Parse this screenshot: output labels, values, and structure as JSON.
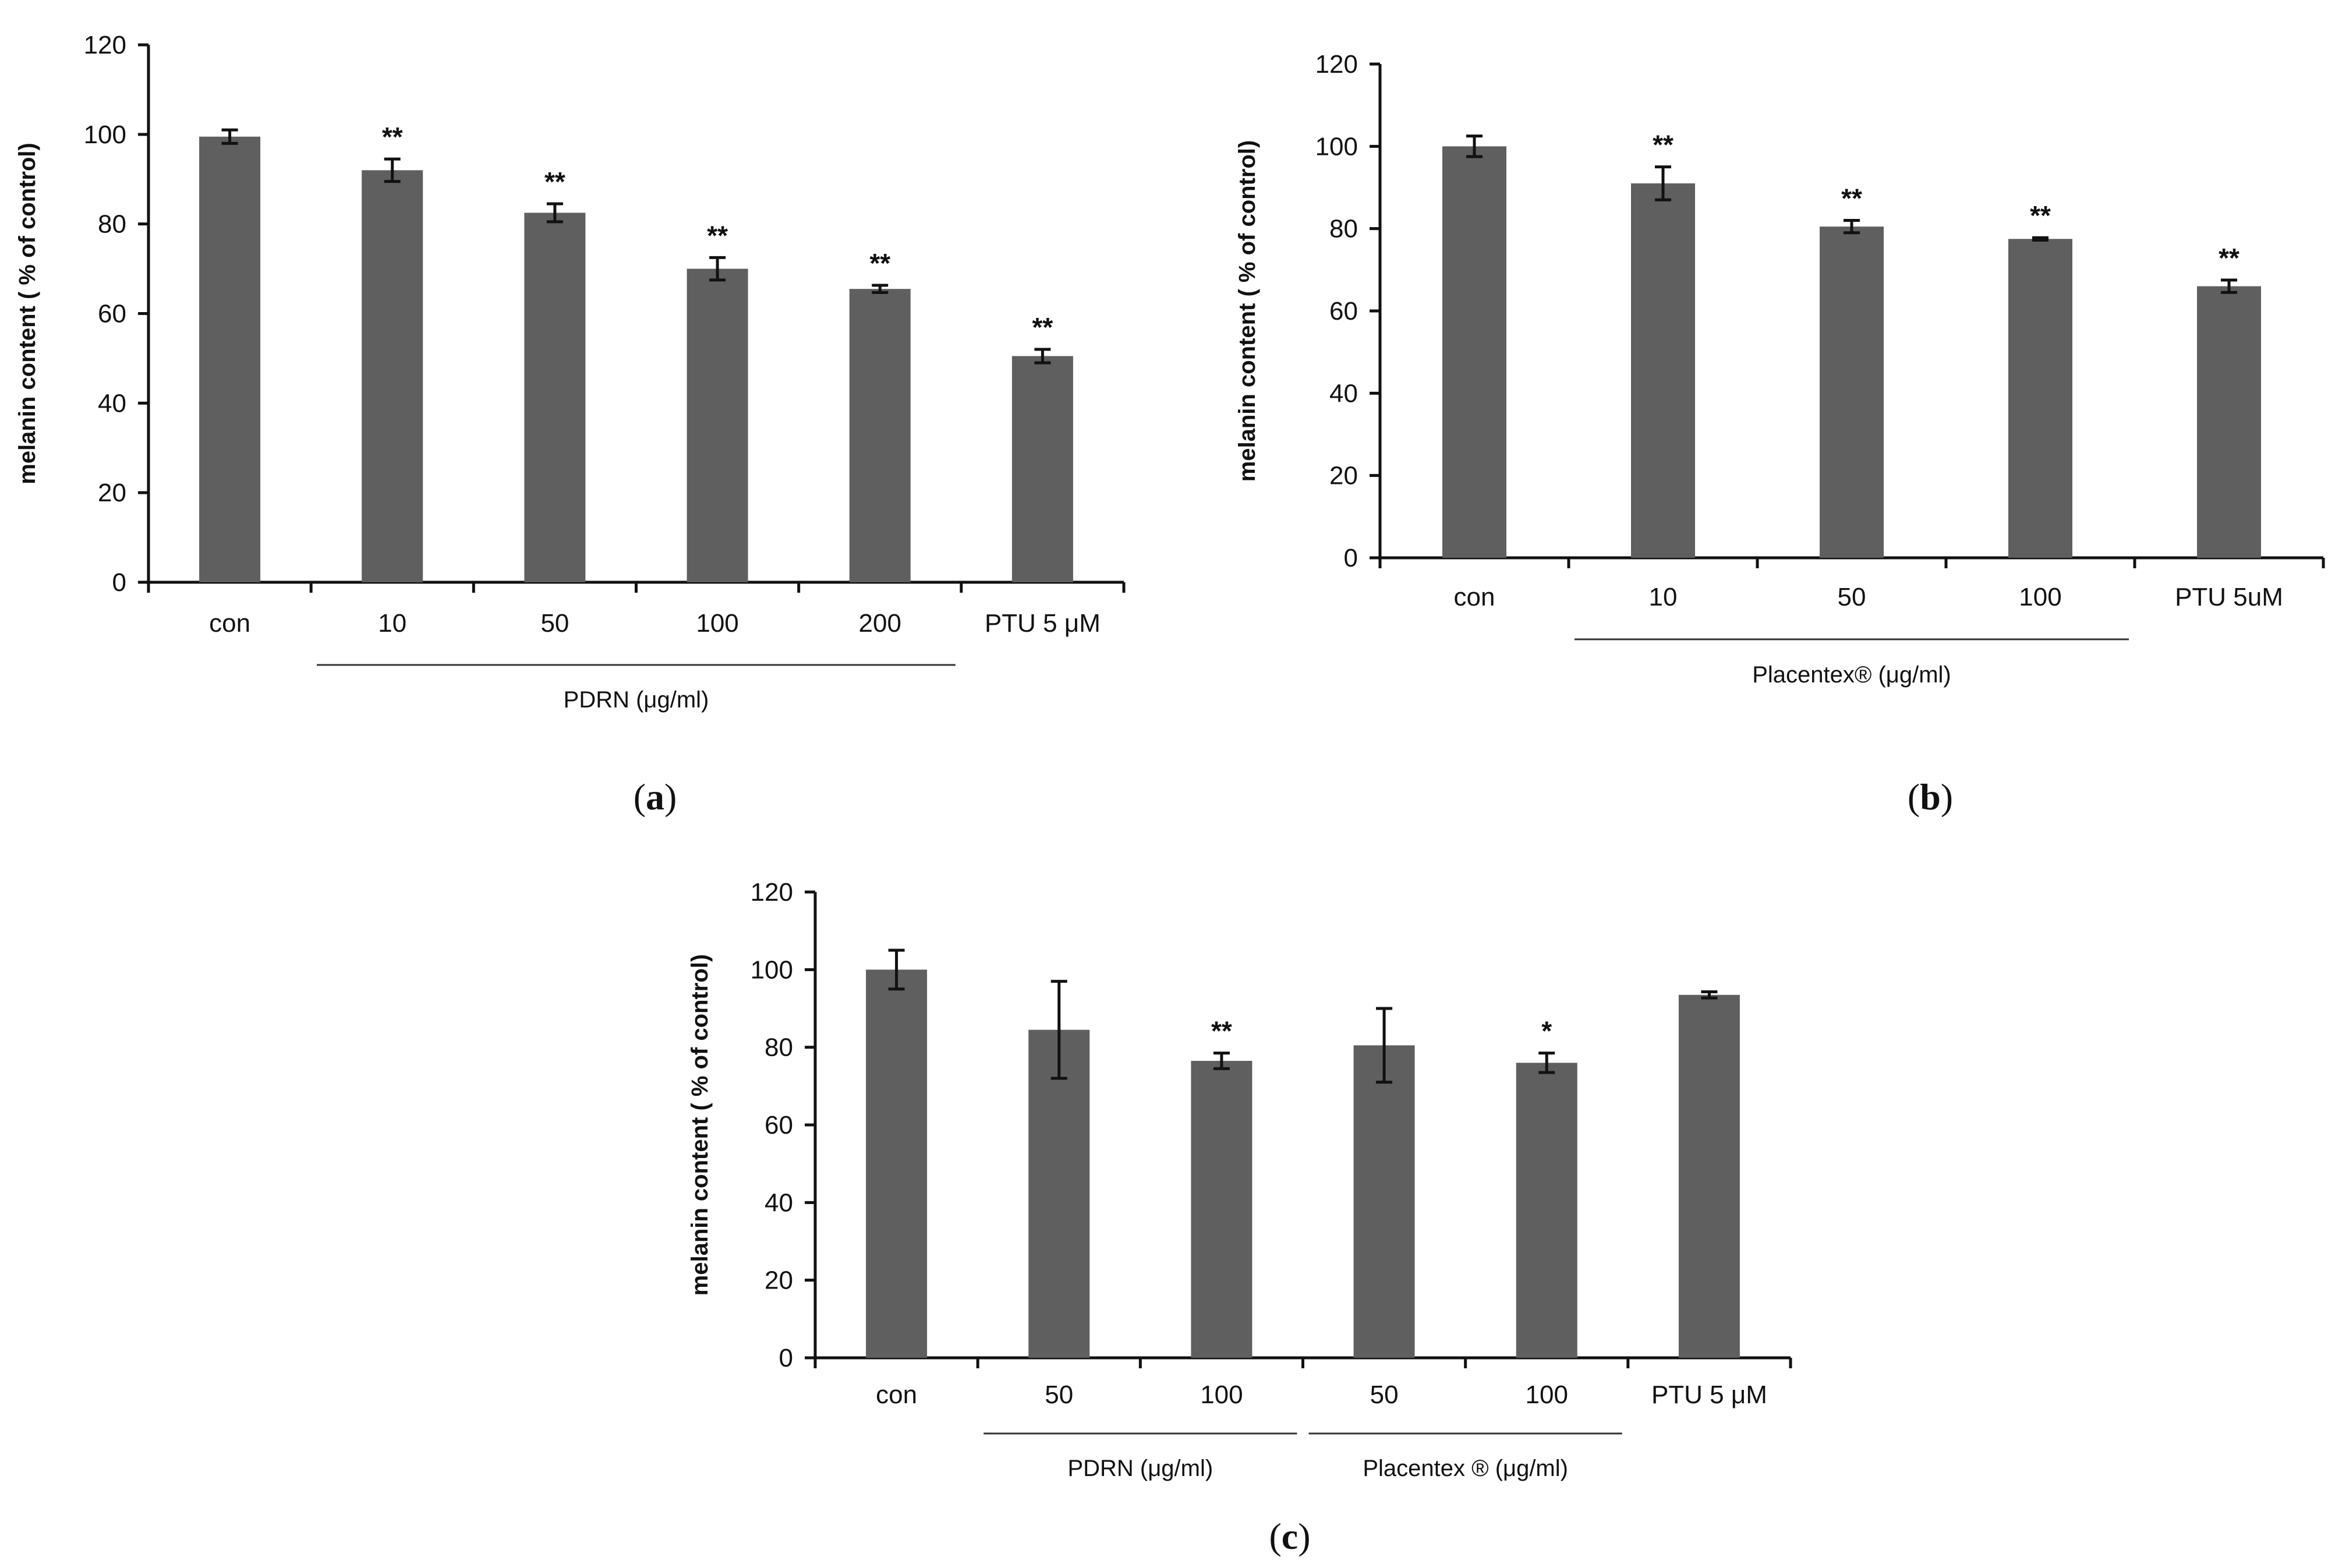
{
  "colors": {
    "bar": "#5f5f5f",
    "axis": "#111111"
  },
  "chart_data": [
    {
      "type": "bar",
      "panel_label": "a",
      "ylabel": "melanin content ( % of control)",
      "ylim": [
        0,
        120
      ],
      "yticks": [
        0,
        20,
        40,
        60,
        80,
        100,
        120
      ],
      "categories": [
        "con",
        "10",
        "50",
        "100",
        "200",
        "PTU 5 μM"
      ],
      "values": [
        99.5,
        92,
        82.5,
        70,
        65.5,
        50.5
      ],
      "errors": [
        1.5,
        2.5,
        2,
        2.5,
        0.8,
        1.5
      ],
      "significance": [
        "",
        "**",
        "**",
        "**",
        "**",
        "**"
      ],
      "group": {
        "label": "PDRN (μg/ml)",
        "from": 1,
        "to": 4
      }
    },
    {
      "type": "bar",
      "panel_label": "b",
      "ylabel": "melanin content ( % of control)",
      "ylim": [
        0,
        120
      ],
      "yticks": [
        0,
        20,
        40,
        60,
        80,
        100,
        120
      ],
      "categories": [
        "con",
        "10",
        "50",
        "100",
        "PTU 5uM"
      ],
      "values": [
        100,
        91,
        80.5,
        77.5,
        66
      ],
      "errors": [
        2.5,
        4,
        1.5,
        0.3,
        1.5
      ],
      "significance": [
        "",
        "**",
        "**",
        "**",
        "**"
      ],
      "group": {
        "label": "Placentex® (μg/ml)",
        "from": 1,
        "to": 3
      }
    },
    {
      "type": "bar",
      "panel_label": "c",
      "ylabel": "melanin content ( % of control)",
      "ylim": [
        0,
        120
      ],
      "yticks": [
        0,
        20,
        40,
        60,
        80,
        100,
        120
      ],
      "categories": [
        "con",
        "50",
        "100",
        "50",
        "100",
        "PTU 5 μM"
      ],
      "values": [
        100,
        84.5,
        76.5,
        80.5,
        76,
        93.5
      ],
      "errors": [
        5,
        12.5,
        2,
        9.5,
        2.5,
        0.8
      ],
      "significance": [
        "",
        "",
        "**",
        "",
        "*",
        ""
      ],
      "groups": [
        {
          "label": "PDRN (μg/ml)",
          "from": 1,
          "to": 2
        },
        {
          "label": "Placentex ® (μg/ml)",
          "from": 3,
          "to": 4
        }
      ]
    }
  ]
}
